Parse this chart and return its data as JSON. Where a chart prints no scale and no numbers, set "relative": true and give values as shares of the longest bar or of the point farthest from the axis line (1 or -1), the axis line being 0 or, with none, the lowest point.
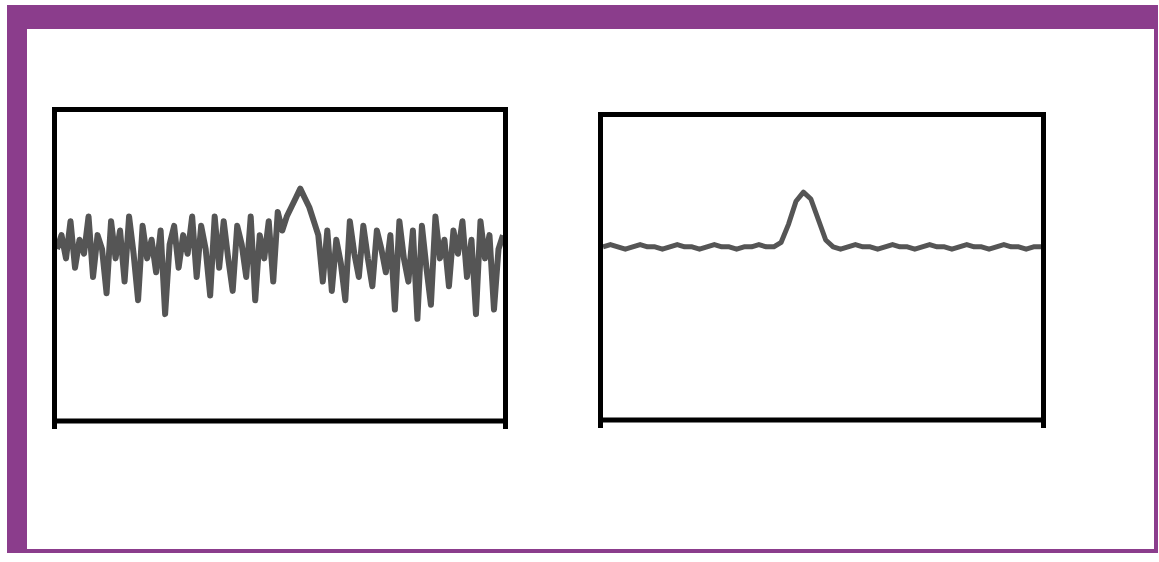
{
  "chart_data": [
    {
      "type": "line",
      "relative": true,
      "marker": "none",
      "categories": [
        null,
        null,
        null,
        null,
        null,
        null,
        null,
        null,
        null,
        null,
        null,
        null,
        null,
        null,
        null,
        null,
        null,
        null,
        null,
        null,
        null,
        null,
        null,
        null,
        null,
        null,
        null,
        null,
        null,
        null,
        null,
        null,
        null,
        null,
        null,
        null,
        null,
        null,
        null,
        null,
        null,
        null,
        null,
        null,
        null,
        null,
        null,
        null,
        null,
        null,
        null,
        null,
        null,
        null,
        null,
        null,
        null,
        null,
        null,
        null,
        null,
        null,
        null,
        null,
        null,
        null,
        null,
        null,
        null,
        null,
        null,
        null,
        null,
        null,
        null,
        null,
        null,
        null,
        null,
        null,
        null,
        null,
        null,
        null,
        null,
        null,
        null,
        null,
        null,
        null,
        null,
        null,
        null,
        null,
        null,
        null,
        null,
        null,
        null,
        null
      ],
      "series": [
        {
          "color": "#555555",
          "values": [
            0.74,
            0.8,
            0.7,
            0.86,
            0.66,
            0.78,
            0.72,
            0.88,
            0.62,
            0.8,
            0.74,
            0.55,
            0.86,
            0.7,
            0.82,
            0.6,
            0.88,
            0.72,
            0.52,
            0.84,
            0.7,
            0.78,
            0.64,
            0.82,
            0.46,
            0.76,
            0.84,
            0.66,
            0.8,
            0.72,
            0.88,
            0.62,
            0.84,
            0.74,
            0.54,
            0.88,
            0.66,
            0.86,
            0.7,
            0.56,
            0.84,
            0.76,
            0.62,
            0.88,
            0.52,
            0.8,
            0.7,
            0.86,
            0.6,
            0.9,
            0.82,
            0.88,
            0.92,
            0.96,
            1.0,
            0.96,
            0.92,
            0.86,
            0.8,
            0.6,
            0.82,
            0.56,
            0.78,
            0.68,
            0.52,
            0.86,
            0.72,
            0.62,
            0.84,
            0.7,
            0.58,
            0.82,
            0.74,
            0.64,
            0.8,
            0.48,
            0.86,
            0.7,
            0.6,
            0.82,
            0.44,
            0.84,
            0.66,
            0.5,
            0.88,
            0.7,
            0.78,
            0.58,
            0.82,
            0.72,
            0.86,
            0.62,
            0.78,
            0.46,
            0.86,
            0.7,
            0.8,
            0.48,
            0.74,
            0.8
          ]
        }
      ]
    },
    {
      "type": "line",
      "relative": true,
      "marker": "none",
      "categories": [
        null,
        null,
        null,
        null,
        null,
        null,
        null,
        null,
        null,
        null,
        null,
        null,
        null,
        null,
        null,
        null,
        null,
        null,
        null,
        null,
        null,
        null,
        null,
        null,
        null,
        null,
        null,
        null,
        null,
        null,
        null,
        null,
        null,
        null,
        null,
        null,
        null,
        null,
        null,
        null,
        null,
        null,
        null,
        null,
        null,
        null,
        null,
        null,
        null,
        null,
        null,
        null,
        null,
        null,
        null,
        null,
        null,
        null,
        null,
        null
      ],
      "series": [
        {
          "color": "#555555",
          "values": [
            0.76,
            0.77,
            0.76,
            0.75,
            0.76,
            0.77,
            0.76,
            0.76,
            0.75,
            0.76,
            0.77,
            0.76,
            0.76,
            0.75,
            0.76,
            0.77,
            0.76,
            0.76,
            0.75,
            0.76,
            0.76,
            0.77,
            0.76,
            0.76,
            0.78,
            0.86,
            0.96,
            1.0,
            0.97,
            0.88,
            0.79,
            0.76,
            0.75,
            0.76,
            0.77,
            0.76,
            0.76,
            0.75,
            0.76,
            0.77,
            0.76,
            0.76,
            0.75,
            0.76,
            0.77,
            0.76,
            0.76,
            0.75,
            0.76,
            0.77,
            0.76,
            0.76,
            0.75,
            0.76,
            0.77,
            0.76,
            0.76,
            0.75,
            0.76,
            0.76
          ]
        }
      ]
    }
  ]
}
